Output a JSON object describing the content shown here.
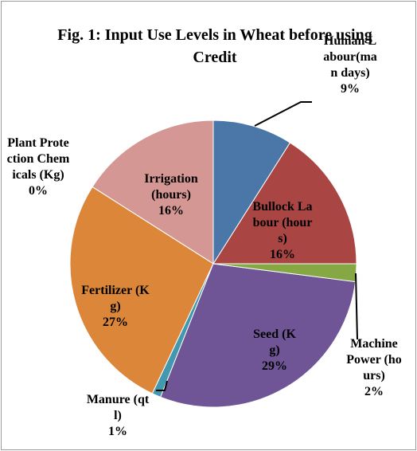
{
  "chart_data": {
    "type": "pie",
    "title": "Fig. 1: Input Use Levels in Wheat before using Credit",
    "categories": [
      "Human Labour(man days)",
      "Bullock Labour (hours)",
      "Machine Power (hours)",
      "Seed (Kg)",
      "Manure (qtl)",
      "Fertilizer (Kg)",
      "Plant Protection Chemicals (Kg)",
      "Irrigation (hours)"
    ],
    "values": [
      9,
      16,
      2,
      29,
      1,
      27,
      0,
      16
    ],
    "value_labels": [
      "9%",
      "16%",
      "2%",
      "29%",
      "1%",
      "27%",
      "0%",
      "16%"
    ],
    "colors": [
      "#4a76a8",
      "#a94643",
      "#86a844",
      "#6f5596",
      "#4298ae",
      "#db8639",
      "#7f7fbf",
      "#d59794"
    ]
  }
}
